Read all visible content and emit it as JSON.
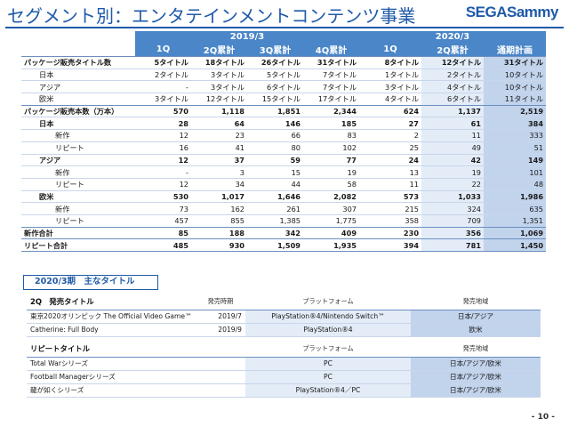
{
  "header": {
    "title": "セグメント別：エンタテインメントコンテンツ事業",
    "logo": "SEGASammy"
  },
  "table": {
    "years": [
      "2019/3",
      "2020/3"
    ],
    "columns": [
      "1Q",
      "2Q累計",
      "3Q累計",
      "4Q累計",
      "1Q",
      "2Q累計",
      "通期計画"
    ],
    "rows": [
      {
        "label": "パッケージ販売タイトル数",
        "kind": "section",
        "values": [
          "5タイトル",
          "18タイトル",
          "26タイトル",
          "31タイトル",
          "8タイトル",
          "12タイトル",
          "31タイトル"
        ]
      },
      {
        "label": "日本",
        "kind": "sub1",
        "values": [
          "2タイトル",
          "3タイトル",
          "5タイトル",
          "7タイトル",
          "1タイトル",
          "2タイトル",
          "10タイトル"
        ]
      },
      {
        "label": "アジア",
        "kind": "sub1",
        "values": [
          "-",
          "3タイトル",
          "6タイトル",
          "7タイトル",
          "3タイトル",
          "4タイトル",
          "10タイトル"
        ]
      },
      {
        "label": "欧米",
        "kind": "sub1",
        "values": [
          "3タイトル",
          "12タイトル",
          "15タイトル",
          "17タイトル",
          "4タイトル",
          "6タイトル",
          "11タイトル"
        ]
      },
      {
        "label": "パッケージ販売本数（万本）",
        "kind": "section",
        "values": [
          "570",
          "1,118",
          "1,851",
          "2,344",
          "624",
          "1,137",
          "2,519"
        ]
      },
      {
        "label": "日本",
        "kind": "subb",
        "values": [
          "28",
          "64",
          "146",
          "185",
          "27",
          "61",
          "384"
        ]
      },
      {
        "label": "新作",
        "kind": "sub2",
        "values": [
          "12",
          "23",
          "66",
          "83",
          "2",
          "11",
          "333"
        ]
      },
      {
        "label": "リピート",
        "kind": "sub2",
        "values": [
          "16",
          "41",
          "80",
          "102",
          "25",
          "49",
          "51"
        ]
      },
      {
        "label": "アジア",
        "kind": "subb",
        "values": [
          "12",
          "37",
          "59",
          "77",
          "24",
          "42",
          "149"
        ]
      },
      {
        "label": "新作",
        "kind": "sub2",
        "values": [
          "-",
          "3",
          "15",
          "19",
          "13",
          "19",
          "101"
        ]
      },
      {
        "label": "リピート",
        "kind": "sub2",
        "values": [
          "12",
          "34",
          "44",
          "58",
          "11",
          "22",
          "48"
        ]
      },
      {
        "label": "欧米",
        "kind": "subb",
        "values": [
          "530",
          "1,017",
          "1,646",
          "2,082",
          "573",
          "1,033",
          "1,986"
        ]
      },
      {
        "label": "新作",
        "kind": "sub2",
        "values": [
          "73",
          "162",
          "261",
          "307",
          "215",
          "324",
          "635"
        ]
      },
      {
        "label": "リピート",
        "kind": "sub2",
        "values": [
          "457",
          "855",
          "1,385",
          "1,775",
          "358",
          "709",
          "1,351"
        ]
      },
      {
        "label": "新作合計",
        "kind": "section",
        "values": [
          "85",
          "188",
          "342",
          "409",
          "230",
          "356",
          "1,069"
        ]
      },
      {
        "label": "リピート合計",
        "kind": "section-last",
        "values": [
          "485",
          "930",
          "1,509",
          "1,935",
          "394",
          "781",
          "1,450"
        ]
      }
    ]
  },
  "main_titles": {
    "heading": "2020/3期　主なタイトル",
    "new_header": {
      "title": "2Q　発売タイトル",
      "date": "発売時期",
      "platform": "プラットフォーム",
      "region": "発売地域"
    },
    "new_rows": [
      {
        "title": "東京2020オリンピック The Official Video Game™",
        "date": "2019/7",
        "platform": "PlayStation®4/Nintendo Switch™",
        "region": "日本/アジア"
      },
      {
        "title": "Catherine: Full Body",
        "date": "2019/9",
        "platform": "PlayStation®4",
        "region": "欧米"
      }
    ],
    "repeat_header": {
      "title": "リピートタイトル",
      "platform": "プラットフォーム",
      "region": "発売地域"
    },
    "repeat_rows": [
      {
        "title": "Total Warシリーズ",
        "platform": "PC",
        "region": "日本/アジア/欧米"
      },
      {
        "title": "Football Managerシリーズ",
        "platform": "PC",
        "region": "日本/アジア/欧米"
      },
      {
        "title": "龍が如くシリーズ",
        "platform": "PlayStation®4／PC",
        "region": "日本/アジア/欧米"
      }
    ]
  },
  "page_number": "- 10 -"
}
